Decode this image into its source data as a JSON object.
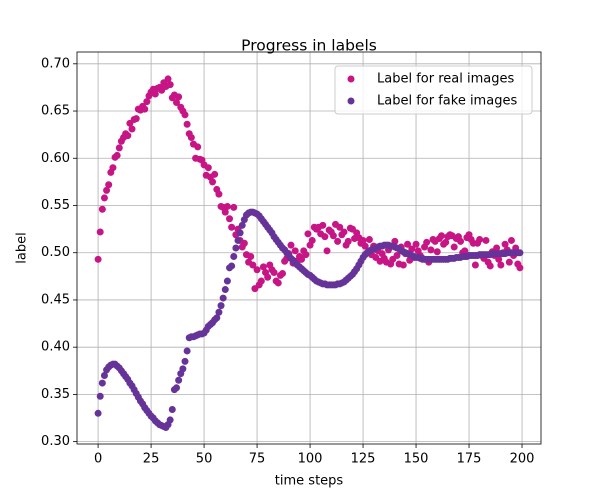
{
  "chart_data": {
    "type": "scatter",
    "title": "Progress in labels",
    "x_label": "time steps",
    "y_label": "label",
    "x": [
      0,
      1,
      2,
      3,
      4,
      5,
      6,
      7,
      8,
      9,
      10,
      11,
      12,
      13,
      14,
      15,
      16,
      17,
      18,
      19,
      20,
      21,
      22,
      23,
      24,
      25,
      26,
      27,
      28,
      29,
      30,
      31,
      32,
      33,
      34,
      35,
      36,
      37,
      38,
      39,
      40,
      41,
      42,
      43,
      44,
      45,
      46,
      47,
      48,
      49,
      50,
      51,
      52,
      53,
      54,
      55,
      56,
      57,
      58,
      59,
      60,
      61,
      62,
      63,
      64,
      65,
      66,
      67,
      68,
      69,
      70,
      71,
      72,
      73,
      74,
      75,
      76,
      77,
      78,
      79,
      80,
      81,
      82,
      83,
      84,
      85,
      86,
      87,
      88,
      89,
      90,
      91,
      92,
      93,
      94,
      95,
      96,
      97,
      98,
      99,
      100,
      101,
      102,
      103,
      104,
      105,
      106,
      107,
      108,
      109,
      110,
      111,
      112,
      113,
      114,
      115,
      116,
      117,
      118,
      119,
      120,
      121,
      122,
      123,
      124,
      125,
      126,
      127,
      128,
      129,
      130,
      131,
      132,
      133,
      134,
      135,
      136,
      137,
      138,
      139,
      140,
      141,
      142,
      143,
      144,
      145,
      146,
      147,
      148,
      149,
      150,
      151,
      152,
      153,
      154,
      155,
      156,
      157,
      158,
      159,
      160,
      161,
      162,
      163,
      164,
      165,
      166,
      167,
      168,
      169,
      170,
      171,
      172,
      173,
      174,
      175,
      176,
      177,
      178,
      179,
      180,
      181,
      182,
      183,
      184,
      185,
      186,
      187,
      188,
      189,
      190,
      191,
      192,
      193,
      194,
      195,
      196,
      197,
      198,
      199
    ],
    "series": [
      {
        "name": "Label for real images",
        "color": "#c71585",
        "values": [
          0.493,
          0.522,
          0.546,
          0.558,
          0.566,
          0.572,
          0.585,
          0.59,
          0.601,
          0.603,
          0.611,
          0.618,
          0.622,
          0.626,
          0.624,
          0.637,
          0.631,
          0.641,
          0.642,
          0.652,
          0.651,
          0.655,
          0.652,
          0.66,
          0.666,
          0.67,
          0.673,
          0.668,
          0.674,
          0.675,
          0.672,
          0.68,
          0.676,
          0.684,
          0.678,
          0.664,
          0.667,
          0.659,
          0.665,
          0.654,
          0.65,
          0.646,
          0.636,
          0.626,
          0.622,
          0.615,
          0.6,
          0.612,
          0.599,
          0.598,
          0.593,
          0.582,
          0.59,
          0.58,
          0.575,
          0.583,
          0.567,
          0.562,
          0.549,
          0.548,
          0.543,
          0.549,
          0.536,
          0.527,
          0.548,
          0.519,
          0.525,
          0.513,
          0.506,
          0.51,
          0.498,
          0.49,
          0.496,
          0.487,
          0.462,
          0.482,
          0.466,
          0.47,
          0.485,
          0.479,
          0.474,
          0.487,
          0.482,
          0.479,
          0.47,
          0.468,
          0.476,
          0.478,
          0.491,
          0.494,
          0.499,
          0.508,
          0.489,
          0.502,
          0.491,
          0.496,
          0.493,
          0.502,
          0.498,
          0.52,
          0.508,
          0.513,
          0.527,
          0.525,
          0.527,
          0.52,
          0.529,
          0.517,
          0.502,
          0.524,
          0.522,
          0.518,
          0.53,
          0.512,
          0.527,
          0.519,
          0.522,
          0.508,
          0.512,
          0.526,
          0.525,
          0.515,
          0.521,
          0.516,
          0.51,
          0.513,
          0.507,
          0.5,
          0.514,
          0.498,
          0.507,
          0.495,
          0.502,
          0.491,
          0.499,
          0.494,
          0.49,
          0.503,
          0.488,
          0.493,
          0.512,
          0.497,
          0.488,
          0.506,
          0.487,
          0.499,
          0.509,
          0.492,
          0.504,
          0.495,
          0.509,
          0.502,
          0.497,
          0.493,
          0.506,
          0.511,
          0.49,
          0.503,
          0.514,
          0.512,
          0.501,
          0.515,
          0.518,
          0.509,
          0.511,
          0.517,
          0.519,
          0.518,
          0.506,
          0.515,
          0.517,
          0.512,
          0.5,
          0.502,
          0.516,
          0.519,
          0.514,
          0.51,
          0.487,
          0.51,
          0.514,
          0.497,
          0.494,
          0.513,
          0.49,
          0.486,
          0.501,
          0.497,
          0.505,
          0.493,
          0.487,
          0.5,
          0.509,
          0.503,
          0.49,
          0.513,
          0.497,
          0.505,
          0.488,
          0.484
        ]
      },
      {
        "name": "Label for fake images",
        "color": "#663399",
        "values": [
          0.33,
          0.348,
          0.362,
          0.37,
          0.376,
          0.379,
          0.381,
          0.382,
          0.382,
          0.38,
          0.378,
          0.375,
          0.372,
          0.369,
          0.366,
          0.362,
          0.359,
          0.355,
          0.351,
          0.347,
          0.343,
          0.34,
          0.336,
          0.333,
          0.33,
          0.327,
          0.325,
          0.322,
          0.32,
          0.318,
          0.317,
          0.316,
          0.315,
          0.318,
          0.323,
          0.334,
          0.355,
          0.357,
          0.365,
          0.372,
          0.377,
          0.385,
          0.396,
          0.41,
          0.411,
          0.411,
          0.412,
          0.413,
          0.414,
          0.414,
          0.415,
          0.418,
          0.422,
          0.424,
          0.426,
          0.429,
          0.431,
          0.437,
          0.444,
          0.452,
          0.461,
          0.47,
          0.484,
          0.486,
          0.496,
          0.505,
          0.513,
          0.521,
          0.529,
          0.535,
          0.54,
          0.542,
          0.543,
          0.543,
          0.542,
          0.541,
          0.539,
          0.536,
          0.533,
          0.53,
          0.527,
          0.524,
          0.521,
          0.517,
          0.514,
          0.511,
          0.508,
          0.505,
          0.503,
          0.5,
          0.497,
          0.494,
          0.492,
          0.489,
          0.487,
          0.485,
          0.483,
          0.481,
          0.479,
          0.477,
          0.476,
          0.474,
          0.472,
          0.47,
          0.469,
          0.468,
          0.467,
          0.467,
          0.466,
          0.466,
          0.466,
          0.466,
          0.466,
          0.467,
          0.467,
          0.468,
          0.469,
          0.471,
          0.473,
          0.475,
          0.477,
          0.48,
          0.483,
          0.487,
          0.491,
          0.495,
          0.498,
          0.5,
          0.502,
          0.503,
          0.504,
          0.505,
          0.506,
          0.507,
          0.507,
          0.508,
          0.508,
          0.508,
          0.507,
          0.507,
          0.506,
          0.505,
          0.504,
          0.502,
          0.501,
          0.5,
          0.499,
          0.498,
          0.497,
          0.496,
          0.495,
          0.495,
          0.494,
          0.494,
          0.493,
          0.493,
          0.493,
          0.493,
          0.493,
          0.493,
          0.493,
          0.493,
          0.493,
          0.493,
          0.493,
          0.493,
          0.494,
          0.494,
          0.494,
          0.495,
          0.495,
          0.495,
          0.496,
          0.496,
          0.496,
          0.497,
          0.497,
          0.497,
          0.497,
          0.497,
          0.498,
          0.498,
          0.498,
          0.498,
          0.498,
          0.498,
          0.499,
          0.499,
          0.499,
          0.499,
          0.499,
          0.499,
          0.499,
          0.5,
          0.5,
          0.5,
          0.5,
          0.5,
          0.5,
          0.5
        ]
      }
    ],
    "xlim": [
      -9.95,
      208.95
    ],
    "ylim": [
      0.2975,
      0.7125
    ],
    "xticks": [
      0,
      25,
      50,
      75,
      100,
      125,
      150,
      175,
      200
    ],
    "yticks": [
      {
        "value": 0.3,
        "label": "0.30"
      },
      0.35,
      {
        "value": 0.4,
        "label": "0.40"
      },
      0.45,
      {
        "value": 0.5,
        "label": "0.50"
      },
      0.55,
      {
        "value": 0.6,
        "label": "0.60"
      },
      0.65,
      {
        "value": 0.7,
        "label": "0.70"
      }
    ],
    "grid": true,
    "legend": "upper-right"
  }
}
